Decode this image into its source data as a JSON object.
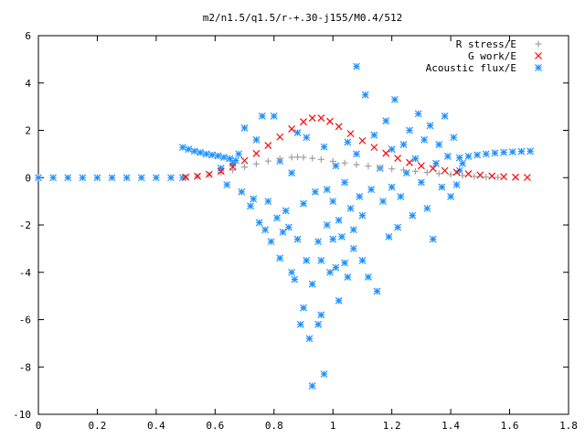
{
  "chart_data": {
    "type": "scatter",
    "title": "m2/n1.5/q1.5/r-+.30-j155/M0.4/512",
    "xlabel": "",
    "ylabel": "",
    "xlim": [
      0,
      1.8
    ],
    "ylim": [
      -10,
      6
    ],
    "xticks": [
      "0",
      "0.2",
      "0.4",
      "0.6",
      "0.8",
      "1",
      "1.2",
      "1.4",
      "1.6",
      "1.8"
    ],
    "yticks": [
      "-10",
      "-8",
      "-6",
      "-4",
      "-2",
      "0",
      "2",
      "4",
      "6"
    ],
    "grid": false,
    "legend_position": "top-right",
    "series": [
      {
        "name": "R stress/E",
        "marker": "plus",
        "color": "#a0a0a0",
        "points": [
          [
            0.5,
            0.0
          ],
          [
            0.54,
            0.05
          ],
          [
            0.58,
            0.12
          ],
          [
            0.62,
            0.21
          ],
          [
            0.66,
            0.32
          ],
          [
            0.7,
            0.45
          ],
          [
            0.74,
            0.58
          ],
          [
            0.78,
            0.7
          ],
          [
            0.82,
            0.8
          ],
          [
            0.86,
            0.86
          ],
          [
            0.88,
            0.87
          ],
          [
            0.9,
            0.86
          ],
          [
            0.93,
            0.82
          ],
          [
            0.96,
            0.77
          ],
          [
            1.0,
            0.69
          ],
          [
            1.04,
            0.62
          ],
          [
            1.08,
            0.55
          ],
          [
            1.12,
            0.49
          ],
          [
            1.16,
            0.43
          ],
          [
            1.2,
            0.37
          ],
          [
            1.24,
            0.32
          ],
          [
            1.28,
            0.27
          ],
          [
            1.32,
            0.22
          ],
          [
            1.36,
            0.17
          ],
          [
            1.4,
            0.13
          ],
          [
            1.44,
            0.09
          ],
          [
            1.48,
            0.05
          ],
          [
            1.52,
            0.03
          ],
          [
            1.56,
            0.01
          ]
        ]
      },
      {
        "name": "G work/E",
        "marker": "cross",
        "color": "#ff0000",
        "points": [
          [
            0.5,
            0.02
          ],
          [
            0.54,
            0.06
          ],
          [
            0.58,
            0.14
          ],
          [
            0.62,
            0.27
          ],
          [
            0.66,
            0.46
          ],
          [
            0.7,
            0.72
          ],
          [
            0.74,
            1.02
          ],
          [
            0.78,
            1.36
          ],
          [
            0.82,
            1.72
          ],
          [
            0.86,
            2.06
          ],
          [
            0.9,
            2.36
          ],
          [
            0.93,
            2.52
          ],
          [
            0.96,
            2.52
          ],
          [
            0.99,
            2.38
          ],
          [
            1.02,
            2.16
          ],
          [
            1.06,
            1.86
          ],
          [
            1.1,
            1.56
          ],
          [
            1.14,
            1.28
          ],
          [
            1.18,
            1.03
          ],
          [
            1.22,
            0.82
          ],
          [
            1.26,
            0.64
          ],
          [
            1.3,
            0.5
          ],
          [
            1.34,
            0.39
          ],
          [
            1.38,
            0.3
          ],
          [
            1.42,
            0.23
          ],
          [
            1.46,
            0.16
          ],
          [
            1.5,
            0.11
          ],
          [
            1.54,
            0.07
          ],
          [
            1.58,
            0.04
          ],
          [
            1.62,
            0.02
          ],
          [
            1.66,
            0.01
          ]
        ]
      },
      {
        "name": "Acoustic flux/E",
        "marker": "star",
        "color": "#1e90ff",
        "points": [
          [
            0.0,
            0.0
          ],
          [
            0.05,
            0.0
          ],
          [
            0.1,
            0.0
          ],
          [
            0.15,
            0.0
          ],
          [
            0.2,
            0.0
          ],
          [
            0.25,
            0.0
          ],
          [
            0.3,
            0.0
          ],
          [
            0.35,
            0.0
          ],
          [
            0.4,
            0.0
          ],
          [
            0.45,
            0.0
          ],
          [
            0.49,
            0.0
          ],
          [
            0.49,
            1.28
          ],
          [
            0.51,
            1.2
          ],
          [
            0.53,
            1.12
          ],
          [
            0.55,
            1.06
          ],
          [
            0.57,
            1.0
          ],
          [
            0.59,
            0.96
          ],
          [
            0.61,
            0.92
          ],
          [
            0.63,
            0.86
          ],
          [
            0.65,
            0.8
          ],
          [
            0.67,
            0.72
          ],
          [
            1.43,
            0.84
          ],
          [
            1.46,
            0.9
          ],
          [
            1.49,
            0.96
          ],
          [
            1.52,
            1.0
          ],
          [
            1.55,
            1.04
          ],
          [
            1.58,
            1.07
          ],
          [
            1.61,
            1.09
          ],
          [
            1.64,
            1.11
          ],
          [
            1.67,
            1.12
          ],
          [
            0.62,
            0.4
          ],
          [
            0.64,
            -0.3
          ],
          [
            0.66,
            0.6
          ],
          [
            0.68,
            1.0
          ],
          [
            0.69,
            -0.6
          ],
          [
            0.7,
            2.1
          ],
          [
            0.72,
            -1.2
          ],
          [
            0.73,
            -0.9
          ],
          [
            0.74,
            1.6
          ],
          [
            0.75,
            -1.9
          ],
          [
            0.76,
            2.6
          ],
          [
            0.77,
            -2.2
          ],
          [
            0.78,
            -1.0
          ],
          [
            0.79,
            -2.7
          ],
          [
            0.8,
            2.6
          ],
          [
            0.81,
            -1.7
          ],
          [
            0.82,
            -3.4
          ],
          [
            0.82,
            0.7
          ],
          [
            0.83,
            -2.3
          ],
          [
            0.84,
            -1.4
          ],
          [
            0.85,
            -2.1
          ],
          [
            0.86,
            -4.0
          ],
          [
            0.86,
            0.2
          ],
          [
            0.87,
            -4.3
          ],
          [
            0.88,
            1.9
          ],
          [
            0.88,
            -2.6
          ],
          [
            0.89,
            -6.2
          ],
          [
            0.9,
            -1.1
          ],
          [
            0.9,
            -5.5
          ],
          [
            0.91,
            -3.5
          ],
          [
            0.91,
            1.7
          ],
          [
            0.92,
            -6.8
          ],
          [
            0.93,
            -8.8
          ],
          [
            0.93,
            -4.5
          ],
          [
            0.94,
            -0.6
          ],
          [
            0.95,
            -2.7
          ],
          [
            0.95,
            -6.2
          ],
          [
            0.96,
            -3.5
          ],
          [
            0.96,
            -5.8
          ],
          [
            0.97,
            -8.3
          ],
          [
            0.97,
            1.3
          ],
          [
            0.98,
            -0.5
          ],
          [
            0.98,
            -2.0
          ],
          [
            0.99,
            -4.0
          ],
          [
            1.0,
            -2.6
          ],
          [
            1.0,
            -1.0
          ],
          [
            1.01,
            0.5
          ],
          [
            1.01,
            -3.8
          ],
          [
            1.02,
            -5.2
          ],
          [
            1.02,
            -1.8
          ],
          [
            1.03,
            -2.5
          ],
          [
            1.04,
            -3.6
          ],
          [
            1.04,
            -0.2
          ],
          [
            1.05,
            -4.2
          ],
          [
            1.05,
            1.5
          ],
          [
            1.06,
            -1.3
          ],
          [
            1.07,
            -2.2
          ],
          [
            1.07,
            -3.0
          ],
          [
            1.08,
            4.7
          ],
          [
            1.08,
            1.0
          ],
          [
            1.09,
            -0.8
          ],
          [
            1.1,
            -3.5
          ],
          [
            1.1,
            -1.6
          ],
          [
            1.11,
            3.5
          ],
          [
            1.12,
            -4.2
          ],
          [
            1.13,
            -0.5
          ],
          [
            1.14,
            1.8
          ],
          [
            1.15,
            -4.8
          ],
          [
            1.16,
            0.4
          ],
          [
            1.17,
            -1.0
          ],
          [
            1.18,
            2.4
          ],
          [
            1.19,
            -2.5
          ],
          [
            1.2,
            1.2
          ],
          [
            1.2,
            -0.4
          ],
          [
            1.21,
            3.3
          ],
          [
            1.22,
            -2.1
          ],
          [
            1.23,
            -0.8
          ],
          [
            1.24,
            1.4
          ],
          [
            1.25,
            0.2
          ],
          [
            1.26,
            2.0
          ],
          [
            1.27,
            -1.6
          ],
          [
            1.28,
            0.8
          ],
          [
            1.29,
            2.7
          ],
          [
            1.3,
            -0.2
          ],
          [
            1.31,
            1.6
          ],
          [
            1.32,
            -1.3
          ],
          [
            1.33,
            2.2
          ],
          [
            1.34,
            -2.6
          ],
          [
            1.35,
            0.6
          ],
          [
            1.36,
            1.4
          ],
          [
            1.37,
            -0.4
          ],
          [
            1.38,
            2.6
          ],
          [
            1.39,
            0.9
          ],
          [
            1.4,
            -0.8
          ],
          [
            1.41,
            1.7
          ],
          [
            1.42,
            -0.3
          ],
          [
            1.43,
            0.3
          ],
          [
            1.44,
            0.6
          ]
        ]
      }
    ]
  }
}
